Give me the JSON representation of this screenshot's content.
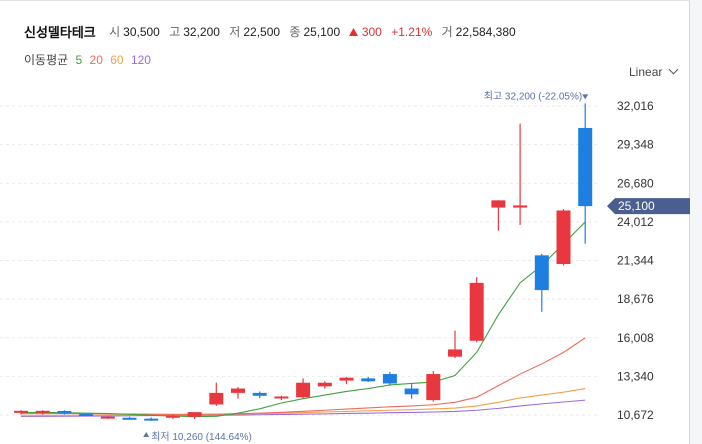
{
  "header": {
    "name": "신성델타테크",
    "open_label": "시",
    "open": "30,500",
    "high_label": "고",
    "high": "32,200",
    "low_label": "저",
    "low": "22,500",
    "close_label": "종",
    "close": "25,100",
    "change_icon": "up-triangle-icon",
    "change": "300",
    "change_pct": "+1.21%",
    "volume_label": "거",
    "volume": "22,584,380",
    "up_color": "#e03131"
  },
  "moving_average": {
    "title": "이동평균",
    "periods": [
      {
        "label": "5",
        "color": "#3fa33f"
      },
      {
        "label": "20",
        "color": "#ef6b5b"
      },
      {
        "label": "60",
        "color": "#f0a24a"
      },
      {
        "label": "120",
        "color": "#9b6be0"
      }
    ]
  },
  "scale_selector": {
    "label": "Linear",
    "icon": "chevron-down-icon"
  },
  "chart_data": {
    "type": "candlestick",
    "title": "신성델타테크",
    "ylim": [
      10000,
      33600
    ],
    "y_ticks": [
      "32,016",
      "29,348",
      "26,680",
      "24,012",
      "21,344",
      "18,676",
      "16,008",
      "13,340",
      "10,672"
    ],
    "y_tick_values": [
      32016,
      29348,
      26680,
      24012,
      21344,
      18676,
      16008,
      13340,
      10672
    ],
    "current_price": {
      "label": "25,100",
      "value": 25100,
      "color": "#4a5f8f"
    },
    "high_annotation": {
      "text": "최고 32,200 (-22.05%)",
      "value": 32200,
      "index": 26
    },
    "low_annotation": {
      "text": "최저 10,260 (144.64%)",
      "value": 10260,
      "index": 6
    },
    "up_color": "#e8373f",
    "down_color": "#1f7fe0",
    "candles": [
      {
        "o": 10860,
        "h": 11000,
        "l": 10700,
        "c": 10960
      },
      {
        "o": 10890,
        "h": 11000,
        "l": 10700,
        "c": 10960
      },
      {
        "o": 10950,
        "h": 11000,
        "l": 10700,
        "c": 10780
      },
      {
        "o": 10740,
        "h": 10800,
        "l": 10600,
        "c": 10660
      },
      {
        "o": 10500,
        "h": 10600,
        "l": 10400,
        "c": 10560
      },
      {
        "o": 10480,
        "h": 10550,
        "l": 10400,
        "c": 10400
      },
      {
        "o": 10420,
        "h": 10500,
        "l": 10260,
        "c": 10300
      },
      {
        "o": 10500,
        "h": 10700,
        "l": 10400,
        "c": 10620
      },
      {
        "o": 10550,
        "h": 10700,
        "l": 10400,
        "c": 10870
      },
      {
        "o": 11400,
        "h": 12900,
        "l": 11300,
        "c": 12200
      },
      {
        "o": 12200,
        "h": 12600,
        "l": 11800,
        "c": 12500
      },
      {
        "o": 12200,
        "h": 12300,
        "l": 11850,
        "c": 12000
      },
      {
        "o": 11850,
        "h": 12000,
        "l": 11700,
        "c": 11950
      },
      {
        "o": 11900,
        "h": 13200,
        "l": 11800,
        "c": 12900
      },
      {
        "o": 12650,
        "h": 13000,
        "l": 12500,
        "c": 12900
      },
      {
        "o": 13050,
        "h": 13300,
        "l": 12800,
        "c": 13250
      },
      {
        "o": 13200,
        "h": 13300,
        "l": 12950,
        "c": 13000
      },
      {
        "o": 13500,
        "h": 13650,
        "l": 12700,
        "c": 12850
      },
      {
        "o": 12500,
        "h": 12800,
        "l": 11800,
        "c": 12100
      },
      {
        "o": 11700,
        "h": 13700,
        "l": 11600,
        "c": 13500
      },
      {
        "o": 14700,
        "h": 16500,
        "l": 14600,
        "c": 15200
      },
      {
        "o": 15800,
        "h": 20200,
        "l": 15700,
        "c": 19800
      },
      {
        "o": 25000,
        "h": 25500,
        "l": 23400,
        "c": 25500
      },
      {
        "o": 25000,
        "h": 30800,
        "l": 23800,
        "c": 25150
      },
      {
        "o": 21700,
        "h": 21800,
        "l": 17800,
        "c": 19300
      },
      {
        "o": 21100,
        "h": 24900,
        "l": 21000,
        "c": 24800
      },
      {
        "o": 30500,
        "h": 32200,
        "l": 22500,
        "c": 25100
      }
    ],
    "ma5": [
      10850,
      10840,
      10830,
      10800,
      10770,
      10720,
      10650,
      10600,
      10560,
      10580,
      10800,
      11100,
      11500,
      11800,
      12050,
      12300,
      12500,
      12750,
      12850,
      12950,
      13400,
      15000,
      17600,
      19800,
      21000,
      22500,
      24000
    ],
    "ma20": [
      10760,
      10765,
      10770,
      10760,
      10750,
      10740,
      10730,
      10720,
      10720,
      10730,
      10760,
      10800,
      10860,
      10930,
      11000,
      11080,
      11160,
      11240,
      11300,
      11380,
      11550,
      11900,
      12700,
      13500,
      14200,
      15000,
      16000
    ],
    "ma60": [
      10620,
      10630,
      10640,
      10650,
      10660,
      10670,
      10680,
      10690,
      10700,
      10720,
      10740,
      10770,
      10800,
      10840,
      10880,
      10920,
      10960,
      11000,
      11040,
      11090,
      11150,
      11300,
      11550,
      11850,
      12050,
      12250,
      12500
    ],
    "ma120": [
      10570,
      10580,
      10590,
      10600,
      10610,
      10620,
      10630,
      10640,
      10650,
      10660,
      10670,
      10690,
      10710,
      10730,
      10750,
      10780,
      10800,
      10830,
      10850,
      10880,
      10920,
      11000,
      11130,
      11300,
      11440,
      11570,
      11700
    ]
  }
}
